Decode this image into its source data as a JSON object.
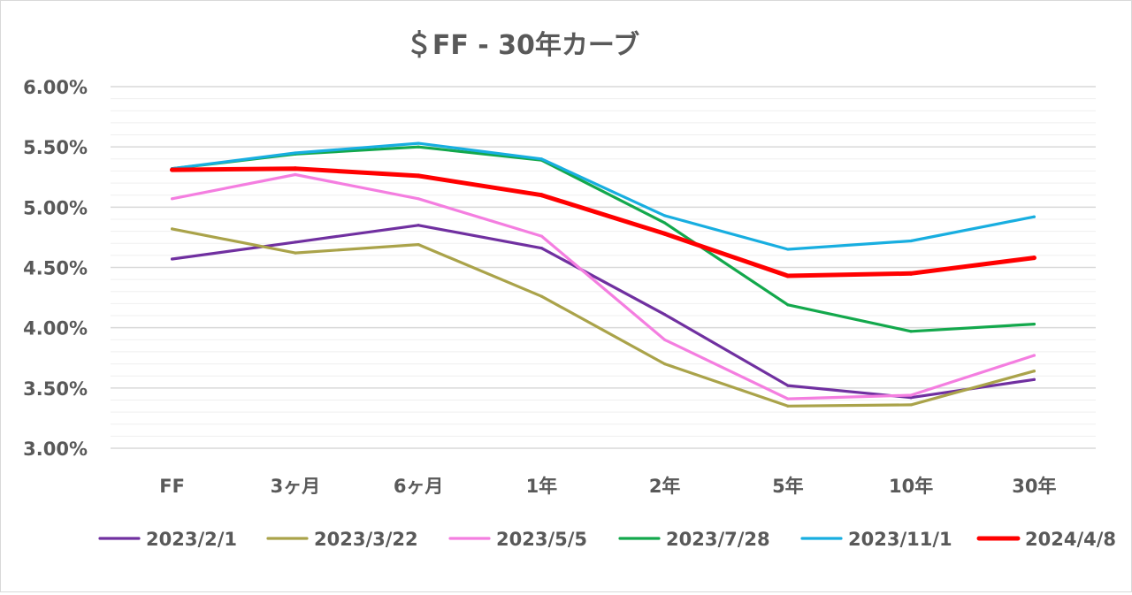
{
  "chart_data": {
    "type": "line",
    "title": "＄FF - 30年カーブ",
    "xlabel": "",
    "ylabel": "",
    "categories": [
      "FF",
      "3ヶ月",
      "6ヶ月",
      "1年",
      "2年",
      "5年",
      "10年",
      "30年"
    ],
    "ylim": [
      3.0,
      6.0
    ],
    "y_ticks": [
      3.0,
      3.5,
      4.0,
      4.5,
      5.0,
      5.5,
      6.0
    ],
    "y_tick_labels": [
      "3.00%",
      "3.50%",
      "4.00%",
      "4.50%",
      "5.00%",
      "5.50%",
      "6.00%"
    ],
    "grid": true,
    "minor_grid": true,
    "legend_position": "bottom",
    "series": [
      {
        "name": "2023/2/1",
        "color": "#7030a0",
        "values": [
          4.57,
          4.71,
          4.85,
          4.66,
          4.11,
          3.52,
          3.42,
          3.57
        ]
      },
      {
        "name": "2023/3/22",
        "color": "#aaa34a",
        "values": [
          4.82,
          4.62,
          4.69,
          4.26,
          3.7,
          3.35,
          3.36,
          3.64
        ]
      },
      {
        "name": "2023/5/5",
        "color": "#f47ee0",
        "values": [
          5.07,
          5.27,
          5.07,
          4.76,
          3.9,
          3.41,
          3.44,
          3.77
        ]
      },
      {
        "name": "2023/7/28",
        "color": "#13a84c",
        "values": [
          5.32,
          5.44,
          5.5,
          5.39,
          4.87,
          4.19,
          3.97,
          4.03
        ]
      },
      {
        "name": "2023/11/1",
        "color": "#18aee0",
        "values": [
          5.32,
          5.45,
          5.53,
          5.4,
          4.93,
          4.65,
          4.72,
          4.92
        ]
      },
      {
        "name": "2024/4/8",
        "color": "#ff0000",
        "values": [
          5.31,
          5.32,
          5.26,
          5.1,
          4.78,
          4.43,
          4.45,
          4.58
        ]
      }
    ]
  }
}
